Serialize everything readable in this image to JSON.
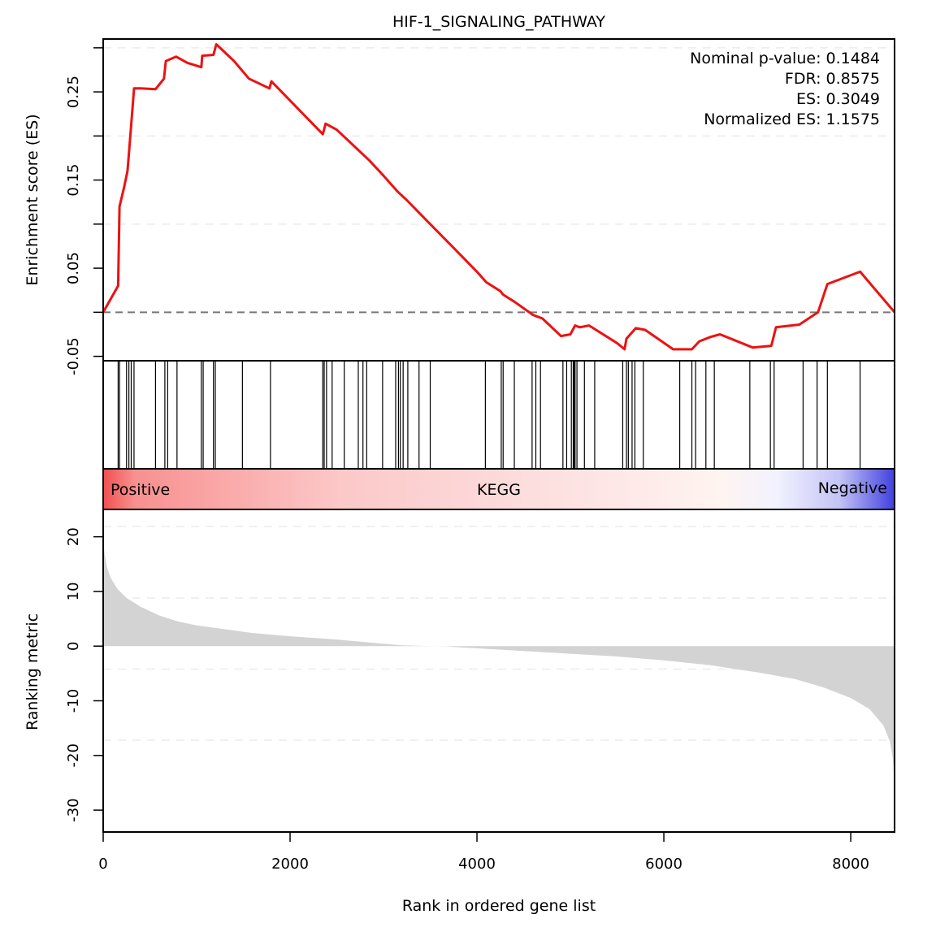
{
  "chart_data": {
    "type": "line",
    "title": "HIF-1_SIGNALING_PATHWAY",
    "stats": [
      {
        "label": "Nominal p-value: 0.1484"
      },
      {
        "label": "FDR: 0.8575"
      },
      {
        "label": "ES: 0.3049"
      },
      {
        "label": "Normalized ES: 1.1575"
      }
    ],
    "es_panel": {
      "ylabel": "Enrichment score (ES)",
      "ylim": [
        -0.055,
        0.31
      ],
      "yticks_labeled": [
        -0.05,
        0.05,
        0.15,
        0.25
      ],
      "yticks_labels": [
        "-0.05",
        "0.05",
        "0.15",
        "0.25"
      ],
      "yticks_minor": [
        0.0,
        0.1,
        0.2,
        0.3
      ],
      "grid_values": [
        0.0,
        0.1,
        0.2,
        0.3
      ],
      "baseline": 0,
      "line_color": "#ee1111",
      "curve": [
        [
          0,
          0.0
        ],
        [
          160,
          0.03
        ],
        [
          175,
          0.12
        ],
        [
          220,
          0.14
        ],
        [
          260,
          0.16
        ],
        [
          290,
          0.2
        ],
        [
          330,
          0.254
        ],
        [
          400,
          0.254
        ],
        [
          560,
          0.253
        ],
        [
          650,
          0.265
        ],
        [
          670,
          0.285
        ],
        [
          780,
          0.29
        ],
        [
          900,
          0.283
        ],
        [
          1050,
          0.278
        ],
        [
          1060,
          0.291
        ],
        [
          1180,
          0.292
        ],
        [
          1210,
          0.304
        ],
        [
          1400,
          0.285
        ],
        [
          1560,
          0.265
        ],
        [
          1780,
          0.254
        ],
        [
          1800,
          0.262
        ],
        [
          2350,
          0.202
        ],
        [
          2380,
          0.214
        ],
        [
          2500,
          0.207
        ],
        [
          2700,
          0.187
        ],
        [
          2850,
          0.172
        ],
        [
          3000,
          0.155
        ],
        [
          3150,
          0.137
        ],
        [
          3250,
          0.127
        ],
        [
          3500,
          0.1
        ],
        [
          3750,
          0.073
        ],
        [
          4000,
          0.046
        ],
        [
          4100,
          0.034
        ],
        [
          4250,
          0.024
        ],
        [
          4280,
          0.02
        ],
        [
          4400,
          0.012
        ],
        [
          4600,
          -0.003
        ],
        [
          4650,
          -0.005
        ],
        [
          4700,
          -0.007
        ],
        [
          4900,
          -0.027
        ],
        [
          5000,
          -0.025
        ],
        [
          5050,
          -0.015
        ],
        [
          5100,
          -0.017
        ],
        [
          5200,
          -0.015
        ],
        [
          5500,
          -0.035
        ],
        [
          5580,
          -0.042
        ],
        [
          5600,
          -0.03
        ],
        [
          5700,
          -0.018
        ],
        [
          5800,
          -0.02
        ],
        [
          6100,
          -0.042
        ],
        [
          6300,
          -0.042
        ],
        [
          6380,
          -0.033
        ],
        [
          6500,
          -0.028
        ],
        [
          6600,
          -0.025
        ],
        [
          6950,
          -0.04
        ],
        [
          7150,
          -0.038
        ],
        [
          7200,
          -0.017
        ],
        [
          7450,
          -0.014
        ],
        [
          7650,
          0.0
        ],
        [
          7750,
          0.032
        ],
        [
          8100,
          0.046
        ],
        [
          8469,
          0.0
        ]
      ]
    },
    "hits_panel": {
      "hits": [
        160,
        175,
        250,
        275,
        300,
        330,
        560,
        660,
        690,
        790,
        1050,
        1070,
        1180,
        1200,
        1490,
        1790,
        2350,
        2365,
        2390,
        2450,
        2580,
        2730,
        2780,
        2820,
        2990,
        3130,
        3160,
        3180,
        3210,
        3260,
        3380,
        3500,
        4090,
        4260,
        4280,
        4400,
        4590,
        4630,
        4680,
        4920,
        4960,
        5010,
        5030,
        5040,
        5050,
        5070,
        5150,
        5260,
        5560,
        5600,
        5620,
        5660,
        5690,
        5780,
        6170,
        6300,
        6340,
        6450,
        6540,
        6920,
        7140,
        7180,
        7490,
        7640,
        7750,
        8100
      ]
    },
    "color_band": {
      "left_label": "Positive",
      "center_label": "KEGG",
      "right_label": "Negative",
      "positive_color": "#f05050",
      "negative_color": "#4040e0"
    },
    "rank_panel": {
      "ylabel": "Ranking metric",
      "ylim": [
        -34,
        25
      ],
      "yticks": [
        -30,
        -20,
        -10,
        0,
        10,
        20
      ],
      "yticks_labels": [
        "-30",
        "-20",
        "-10",
        "0",
        "10",
        "20"
      ],
      "grid_values": [
        21.9,
        8.8,
        -4.2,
        -17.2
      ],
      "fill_color": "#d3d3d3",
      "curve": [
        [
          0,
          20
        ],
        [
          15,
          17
        ],
        [
          40,
          14.5
        ],
        [
          80,
          12.5
        ],
        [
          150,
          10.5
        ],
        [
          250,
          8.8
        ],
        [
          400,
          7.2
        ],
        [
          600,
          5.6
        ],
        [
          800,
          4.5
        ],
        [
          1000,
          3.8
        ],
        [
          1300,
          3.1
        ],
        [
          1600,
          2.4
        ],
        [
          2000,
          1.8
        ],
        [
          2500,
          1.2
        ],
        [
          2900,
          0.6
        ],
        [
          3200,
          0.15
        ],
        [
          3400,
          0.05
        ],
        [
          3700,
          -0.05
        ],
        [
          3750,
          -0.15
        ],
        [
          4200,
          -0.6
        ],
        [
          4800,
          -1.2
        ],
        [
          5500,
          -1.9
        ],
        [
          6000,
          -2.6
        ],
        [
          6500,
          -3.5
        ],
        [
          7000,
          -4.8
        ],
        [
          7400,
          -6.0
        ],
        [
          7700,
          -7.5
        ],
        [
          8000,
          -9.5
        ],
        [
          8200,
          -11.5
        ],
        [
          8350,
          -14.5
        ],
        [
          8420,
          -17.5
        ],
        [
          8450,
          -20.5
        ],
        [
          8469,
          -25
        ]
      ]
    },
    "x_axis": {
      "xlabel": "Rank in ordered gene list",
      "xlim": [
        0,
        8469
      ],
      "xticks": [
        0,
        2000,
        4000,
        6000,
        8000
      ],
      "xticks_labels": [
        "0",
        "2000",
        "4000",
        "6000",
        "8000"
      ]
    }
  }
}
